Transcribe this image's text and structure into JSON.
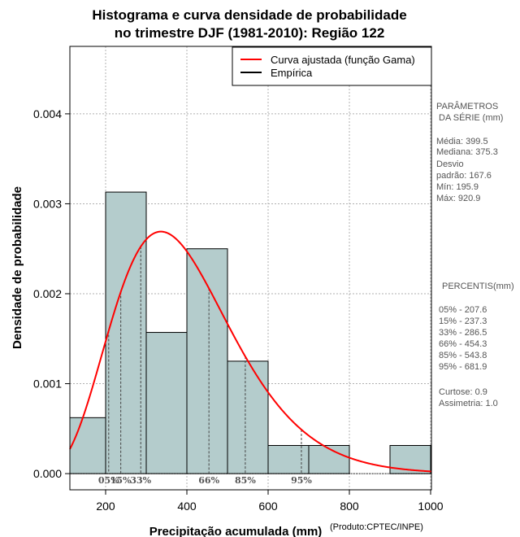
{
  "chart_data": {
    "type": "histogram",
    "title_line1": "Histograma e curva densidade de probabilidade",
    "title_line2": "no trimestre DJF (1981-2010): Região 122",
    "xlabel": "Precipitação acumulada (mm)",
    "ylabel": "Densidade de probabilidade",
    "credit": "(Produto:CPTEC/INPE)",
    "xlim": [
      112,
      1002
    ],
    "ylim": [
      -0.00018,
      0.00475
    ],
    "x_ticks": [
      200,
      400,
      600,
      800,
      1000
    ],
    "x_tick_labels": [
      "200",
      "400",
      "600",
      "800",
      "1000"
    ],
    "y_ticks": [
      0,
      0.001,
      0.002,
      0.003,
      0.004
    ],
    "y_tick_labels": [
      "0.000",
      "0.001",
      "0.002",
      "0.003",
      "0.004"
    ],
    "grid": true,
    "bins": [
      {
        "x0": 100,
        "x1": 200,
        "density": 0.000622
      },
      {
        "x0": 200,
        "x1": 300,
        "density": 0.00313
      },
      {
        "x0": 300,
        "x1": 400,
        "density": 0.00157
      },
      {
        "x0": 400,
        "x1": 500,
        "density": 0.0025
      },
      {
        "x0": 500,
        "x1": 600,
        "density": 0.00125
      },
      {
        "x0": 600,
        "x1": 700,
        "density": 0.000313
      },
      {
        "x0": 700,
        "x1": 800,
        "density": 0.000313
      },
      {
        "x0": 800,
        "x1": 900,
        "density": 0.0
      },
      {
        "x0": 900,
        "x1": 1000,
        "density": 0.000313
      }
    ],
    "fitted_curve": {
      "name": "Curva ajustada (função Gama)",
      "distribution": "gamma",
      "shape": 6.3,
      "scale": 63.4,
      "color": "#ff0000"
    },
    "empirical": {
      "name": "Empírica",
      "color": "#000000"
    },
    "bar_color": "#b4cccc",
    "legend_position": "top-right",
    "percentile_markers": [
      {
        "label": "05%",
        "value": 207.6
      },
      {
        "label": "15%",
        "value": 237.3
      },
      {
        "label": "33%",
        "value": 286.5
      },
      {
        "label": "66%",
        "value": 454.3
      },
      {
        "label": "85%",
        "value": 543.8
      },
      {
        "label": "95%",
        "value": 681.9
      }
    ]
  },
  "side_panel": {
    "params_title_1": "PARÂMETROS",
    "params_title_2": "DA SÉRIE (mm)",
    "params": [
      "Média:  399.5",
      "Mediana:  375.3",
      "Desvio",
      "padrão:  167.6",
      "Mín:  195.9",
      "Máx:  920.9"
    ],
    "percentis_title": "PERCENTIS(mm)",
    "percentis": [
      "05% -  207.6",
      "15% -  237.3",
      "33% -  286.5",
      "66% -  454.3",
      "85% -  543.8",
      "95% -  681.9"
    ],
    "shape_stats": [
      "Curtose:  0.9",
      "Assimetria:  1.0"
    ]
  }
}
